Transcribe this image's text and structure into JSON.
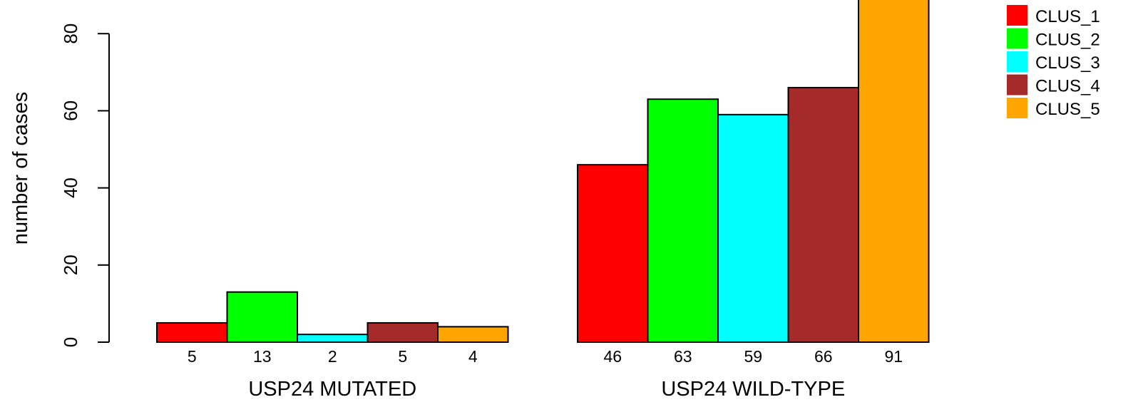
{
  "chart_data": {
    "type": "bar",
    "ylabel": "number of cases",
    "ylim": [
      0,
      91
    ],
    "yticks": [
      0,
      20,
      40,
      60,
      80
    ],
    "grid": false,
    "legend_position": "top-right",
    "series": [
      {
        "name": "CLUS_1",
        "color": "#ff0000"
      },
      {
        "name": "CLUS_2",
        "color": "#00ff00"
      },
      {
        "name": "CLUS_3",
        "color": "#00ffff"
      },
      {
        "name": "CLUS_4",
        "color": "#a52a2a"
      },
      {
        "name": "CLUS_5",
        "color": "#ffa500"
      }
    ],
    "groups": [
      {
        "label": "USP24 MUTATED",
        "values": [
          5,
          13,
          2,
          5,
          4
        ]
      },
      {
        "label": "USP24 WILD-TYPE",
        "values": [
          46,
          63,
          59,
          66,
          91
        ]
      }
    ]
  }
}
